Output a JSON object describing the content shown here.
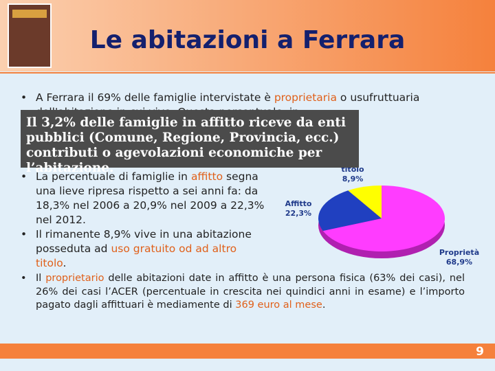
{
  "title": "Le abitazioni a Ferrara",
  "bullets": [
    [
      {
        "text": "A Ferrara il 69% delle famiglie intervistate è "
      },
      {
        "text": "proprietaria",
        "color": "#e0601a"
      },
      {
        "text": " o usufruttuaria dell'abitazione in cui vive. Questa percentuale, in"
      }
    ],
    [
      {
        "text": "La percentuale di famiglie in "
      },
      {
        "text": "affitto",
        "color": "#e0601a"
      },
      {
        "text": " segna una lieve ripresa rispetto a sei anni fa: da 18,3% nel 2006 a 20,9% nel 2009 a 22,3% nel 2012."
      }
    ],
    [
      {
        "text": "Il rimanente 8,9% vive in una abitazione posseduta ad "
      },
      {
        "text": "uso gratuito od ad altro titolo",
        "color": "#e0601a"
      },
      {
        "text": "."
      }
    ],
    [
      {
        "text": "Il "
      },
      {
        "text": "proprietario",
        "color": "#e0601a"
      },
      {
        "text": " delle abitazioni date in affitto è una persona fisica (63% dei casi), nel 26% dei casi l’ACER (percentuale in crescita nei quindici anni in esame) e l’importo pagato dagli affittuari è mediamente di "
      },
      {
        "text": "369 euro al mese",
        "color": "#e0601a"
      },
      {
        "text": "."
      }
    ]
  ],
  "callout": "Il 3,2% delle famiglie in affitto riceve da enti pubblici (Comune, Regione, Provincia, ecc.) contributi o agevolazioni economiche per l’abitazione.",
  "page_number": "9",
  "chart_data": {
    "type": "pie",
    "categories": [
      "titolo",
      "Affitto",
      "Proprietà"
    ],
    "values": [
      8.9,
      22.3,
      68.9
    ],
    "value_labels": [
      "8,9%",
      "22,3%",
      "68,9%"
    ],
    "colors": [
      "#ffff00",
      "#2040c0",
      "#ff3cff"
    ]
  }
}
